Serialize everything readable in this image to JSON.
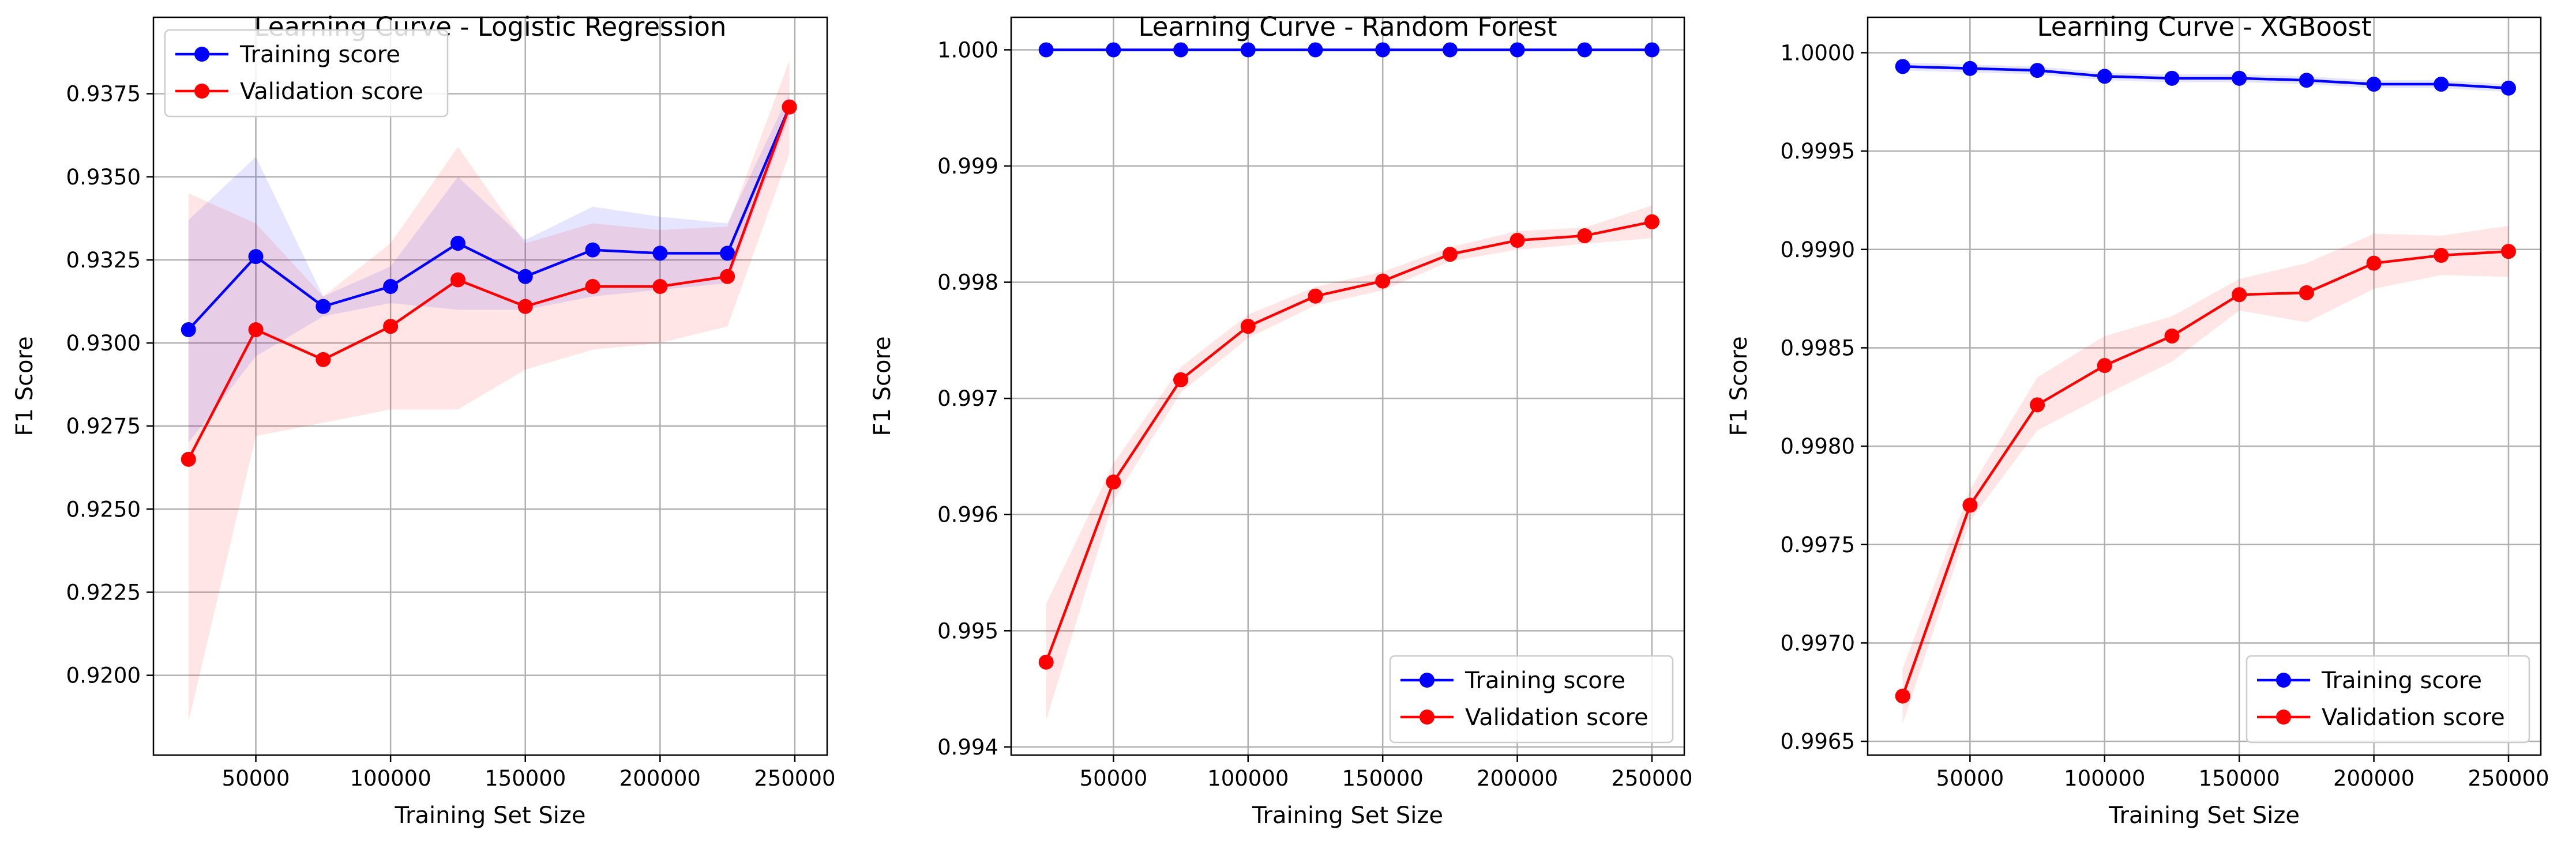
{
  "chart_data": [
    {
      "type": "line",
      "title": "Learning Curve - Logistic Regression",
      "xlabel": "Training Set Size",
      "ylabel": "F1 Score",
      "xlim": [
        12000,
        262000
      ],
      "ylim": [
        0.9176,
        0.9398
      ],
      "xticks": [
        50000,
        100000,
        150000,
        200000,
        250000
      ],
      "xtick_labels": [
        "50000",
        "100000",
        "150000",
        "200000",
        "250000"
      ],
      "yticks": [
        0.92,
        0.9225,
        0.925,
        0.9275,
        0.93,
        0.9325,
        0.935,
        0.9375
      ],
      "ytick_labels": [
        "0.9200",
        "0.9225",
        "0.9250",
        "0.9275",
        "0.9300",
        "0.9325",
        "0.9350",
        "0.9375"
      ],
      "grid": true,
      "legend_position": "upper-left",
      "x": [
        25000,
        50000,
        75000,
        100000,
        125000,
        150000,
        175000,
        200000,
        225000,
        248000
      ],
      "series": [
        {
          "name": "Training score",
          "color": "#0000ff",
          "values": [
            0.9304,
            0.9326,
            0.9311,
            0.9317,
            0.933,
            0.932,
            0.9328,
            0.9327,
            0.9327,
            0.9371
          ],
          "band_lower": [
            0.927,
            0.9296,
            0.9308,
            0.9312,
            0.931,
            0.931,
            0.9314,
            0.9316,
            0.9318,
            0.9368
          ],
          "band_upper": [
            0.9337,
            0.9356,
            0.9314,
            0.9323,
            0.935,
            0.9331,
            0.9341,
            0.9338,
            0.9336,
            0.9375
          ]
        },
        {
          "name": "Validation score",
          "color": "#ff0000",
          "values": [
            0.9265,
            0.9304,
            0.9295,
            0.9305,
            0.9319,
            0.9311,
            0.9317,
            0.9317,
            0.932,
            0.9371
          ],
          "band_lower": [
            0.9186,
            0.9272,
            0.9276,
            0.928,
            0.928,
            0.9292,
            0.9298,
            0.93,
            0.9305,
            0.9357
          ],
          "band_upper": [
            0.9345,
            0.9336,
            0.9314,
            0.933,
            0.9359,
            0.933,
            0.9336,
            0.9334,
            0.9335,
            0.9385
          ]
        }
      ]
    },
    {
      "type": "line",
      "title": "Learning Curve - Random Forest",
      "xlabel": "Training Set Size",
      "ylabel": "F1 Score",
      "xlim": [
        12000,
        262000
      ],
      "ylim": [
        0.99393,
        1.00028
      ],
      "xticks": [
        50000,
        100000,
        150000,
        200000,
        250000
      ],
      "xtick_labels": [
        "50000",
        "100000",
        "150000",
        "200000",
        "250000"
      ],
      "yticks": [
        0.994,
        0.995,
        0.996,
        0.997,
        0.998,
        0.999,
        1.0
      ],
      "ytick_labels": [
        "0.994",
        "0.995",
        "0.996",
        "0.997",
        "0.998",
        "0.999",
        "1.000"
      ],
      "grid": true,
      "legend_position": "lower-right",
      "x": [
        25000,
        50000,
        75000,
        100000,
        125000,
        150000,
        175000,
        200000,
        225000,
        250000
      ],
      "series": [
        {
          "name": "Training score",
          "color": "#0000ff",
          "values": [
            1.0,
            1.0,
            1.0,
            1.0,
            1.0,
            1.0,
            1.0,
            1.0,
            1.0,
            1.0
          ],
          "band_lower": [
            1.0,
            1.0,
            1.0,
            1.0,
            1.0,
            1.0,
            1.0,
            1.0,
            1.0,
            1.0
          ],
          "band_upper": [
            1.0,
            1.0,
            1.0,
            1.0,
            1.0,
            1.0,
            1.0,
            1.0,
            1.0,
            1.0
          ]
        },
        {
          "name": "Validation score",
          "color": "#ff0000",
          "values": [
            0.99473,
            0.99628,
            0.99716,
            0.99762,
            0.99788,
            0.99801,
            0.99824,
            0.99836,
            0.9984,
            0.99852
          ],
          "band_lower": [
            0.99423,
            0.99612,
            0.99705,
            0.99752,
            0.9978,
            0.99793,
            0.99818,
            0.99828,
            0.99833,
            0.99838
          ],
          "band_upper": [
            0.99523,
            0.99644,
            0.99727,
            0.99772,
            0.99796,
            0.99809,
            0.9983,
            0.99844,
            0.99847,
            0.99866
          ]
        }
      ]
    },
    {
      "type": "line",
      "title": "Learning Curve - XGBoost",
      "xlabel": "Training Set Size",
      "ylabel": "F1 Score",
      "xlim": [
        12000,
        262000
      ],
      "ylim": [
        0.99643,
        1.00018
      ],
      "xticks": [
        50000,
        100000,
        150000,
        200000,
        250000
      ],
      "xtick_labels": [
        "50000",
        "100000",
        "150000",
        "200000",
        "250000"
      ],
      "yticks": [
        0.9965,
        0.997,
        0.9975,
        0.998,
        0.9985,
        0.999,
        0.9995,
        1.0
      ],
      "ytick_labels": [
        "0.9965",
        "0.9970",
        "0.9975",
        "0.9980",
        "0.9985",
        "0.9990",
        "0.9995",
        "1.0000"
      ],
      "grid": true,
      "legend_position": "lower-right",
      "x": [
        25000,
        50000,
        75000,
        100000,
        125000,
        150000,
        175000,
        200000,
        225000,
        250000
      ],
      "series": [
        {
          "name": "Training score",
          "color": "#0000ff",
          "values": [
            0.99993,
            0.99992,
            0.99991,
            0.99988,
            0.99987,
            0.99987,
            0.99986,
            0.99984,
            0.99984,
            0.99982
          ],
          "band_lower": [
            0.99991,
            0.9999,
            0.99989,
            0.99986,
            0.99985,
            0.99985,
            0.99984,
            0.99982,
            0.99982,
            0.9998
          ],
          "band_upper": [
            0.99995,
            0.99994,
            0.99993,
            0.9999,
            0.99989,
            0.99989,
            0.99988,
            0.99986,
            0.99986,
            0.99984
          ]
        },
        {
          "name": "Validation score",
          "color": "#ff0000",
          "values": [
            0.99673,
            0.9977,
            0.99821,
            0.99841,
            0.99856,
            0.99877,
            0.99878,
            0.99893,
            0.99897,
            0.99899
          ],
          "band_lower": [
            0.99659,
            0.99762,
            0.99808,
            0.99826,
            0.99843,
            0.99869,
            0.99863,
            0.9988,
            0.99887,
            0.99886
          ],
          "band_upper": [
            0.99687,
            0.99778,
            0.99835,
            0.99856,
            0.99866,
            0.99885,
            0.99893,
            0.99908,
            0.99907,
            0.99912
          ]
        }
      ]
    }
  ]
}
